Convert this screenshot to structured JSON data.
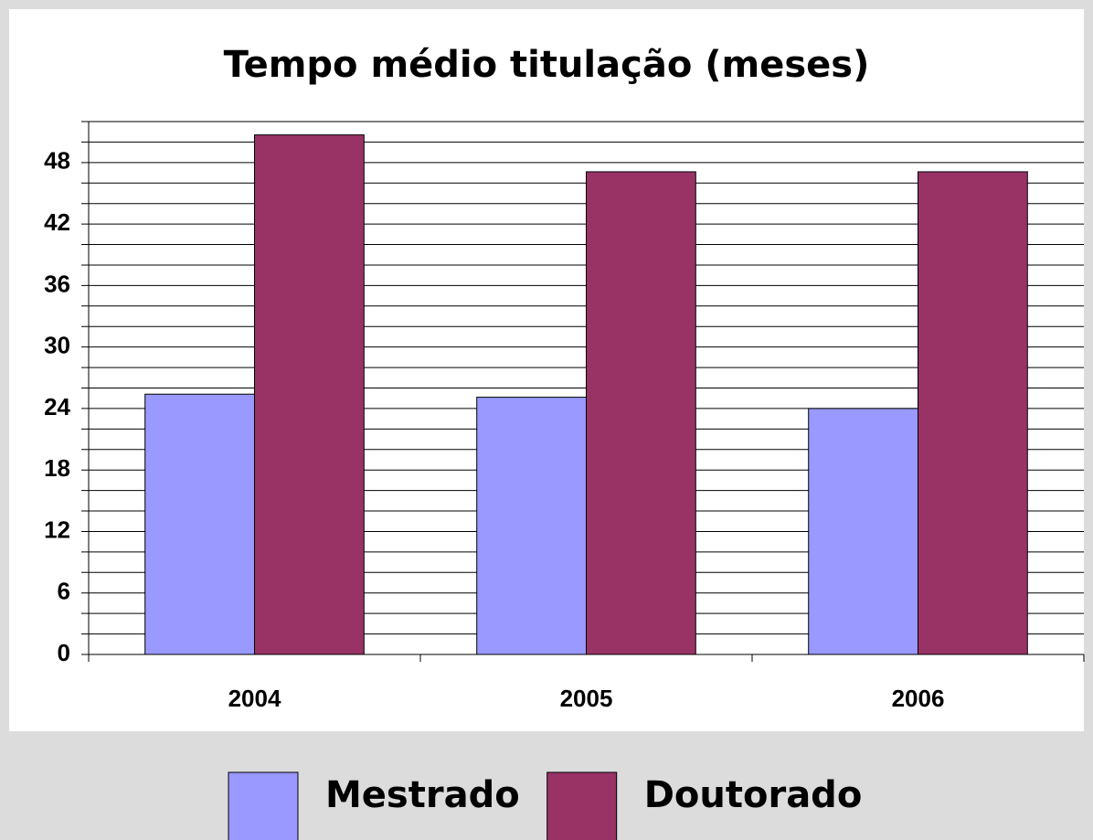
{
  "chart_data": {
    "type": "bar",
    "title": "Tempo médio titulação (meses)",
    "categories": [
      "2004",
      "2005",
      "2006"
    ],
    "series": [
      {
        "name": "Mestrado",
        "color": "#9999ff",
        "values": [
          25.4,
          25.1,
          24.0
        ]
      },
      {
        "name": "Doutorado",
        "color": "#993366",
        "values": [
          50.7,
          47.1,
          47.1
        ]
      }
    ],
    "ylim": [
      0,
      52
    ],
    "yticks": [
      0,
      6,
      12,
      18,
      24,
      30,
      36,
      42,
      48
    ],
    "minor_yticks": [
      2,
      4,
      8,
      10,
      14,
      16,
      20,
      22,
      26,
      28,
      32,
      34,
      38,
      40,
      44,
      46,
      50,
      52
    ],
    "grid": true,
    "legend": "bottom"
  }
}
